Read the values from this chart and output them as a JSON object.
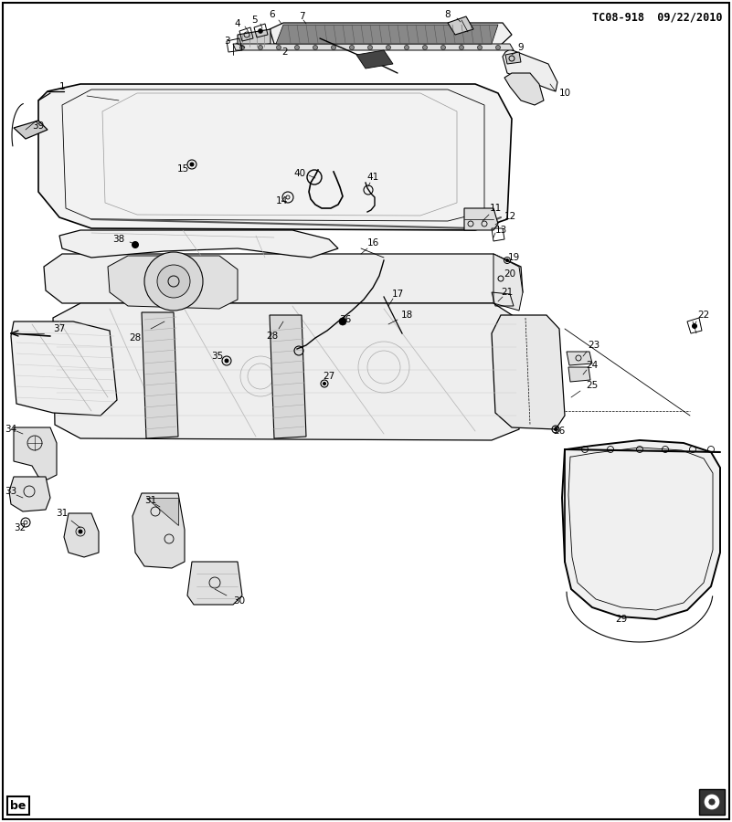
{
  "title": "TC08-918  09/22/2010",
  "background_color": "#ffffff",
  "border_color": "#000000",
  "bottom_left_label": "be",
  "fig_width": 8.01,
  "fig_height": 9.0,
  "dpi": 100,
  "line_color": "#000000",
  "light_gray": "#e8e8e8",
  "mid_gray": "#aaaaaa"
}
